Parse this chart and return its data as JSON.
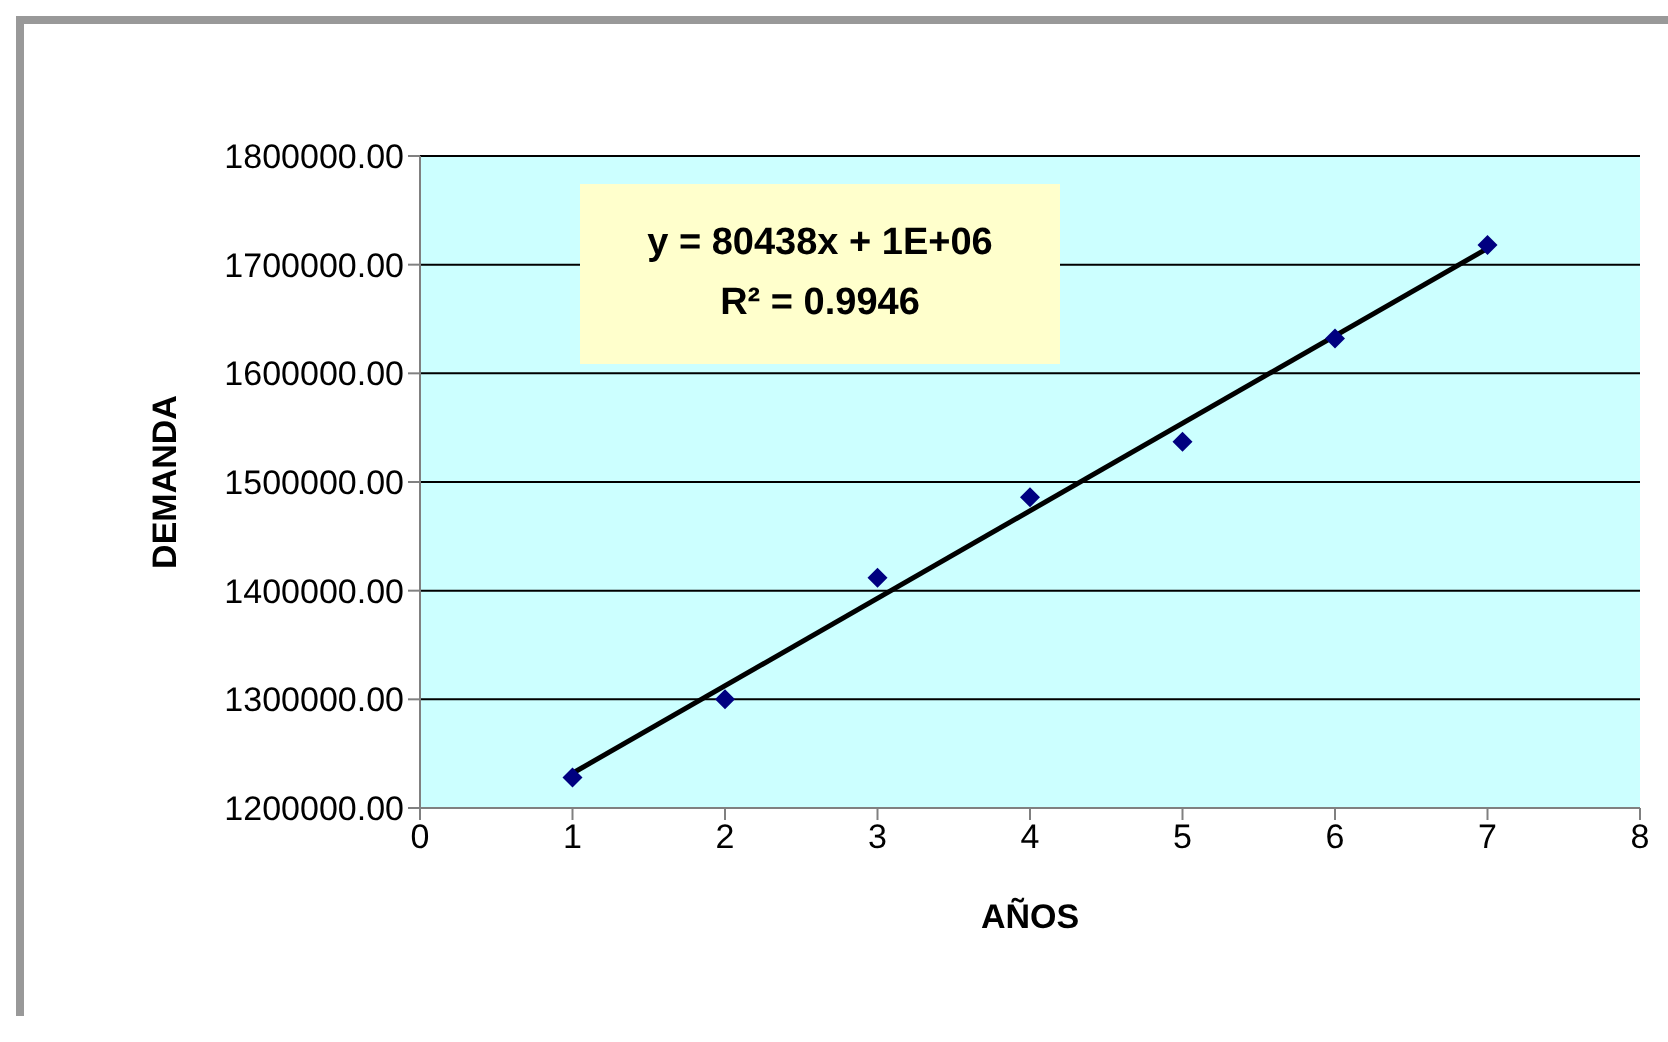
{
  "chart_data": {
    "type": "scatter",
    "xlabel": "AÑOS",
    "ylabel": "DEMANDA",
    "x": [
      1,
      2,
      3,
      4,
      5,
      6,
      7
    ],
    "series": [
      {
        "color": "#000080",
        "marker": "diamond",
        "values": [
          1228000,
          1300000,
          1412000,
          1486000,
          1537000,
          1632000,
          1718000
        ]
      },
      {
        "type": "line",
        "color": "#000000",
        "marker": "none",
        "line_style": "solid",
        "x": [
          1,
          7
        ],
        "values": [
          1232000,
          1715000
        ]
      }
    ],
    "xlim": [
      0,
      8
    ],
    "xticks": [
      0,
      1,
      2,
      3,
      4,
      5,
      6,
      7,
      8
    ],
    "ylim": [
      1200000,
      1800000
    ],
    "yticks": [
      {
        "value": 1200000,
        "label": "1200000.00"
      },
      {
        "value": 1300000,
        "label": "1300000.00"
      },
      {
        "value": 1400000,
        "label": "1400000.00"
      },
      {
        "value": 1500000,
        "label": "1500000.00"
      },
      {
        "value": 1600000,
        "label": "1600000.00"
      },
      {
        "value": 1700000,
        "label": "1700000.00"
      },
      {
        "value": 1800000,
        "label": "1800000.00"
      }
    ],
    "grid": "y",
    "annotations": [
      "y = 80438x + 1E+06",
      "R² = 0.9946"
    ]
  }
}
